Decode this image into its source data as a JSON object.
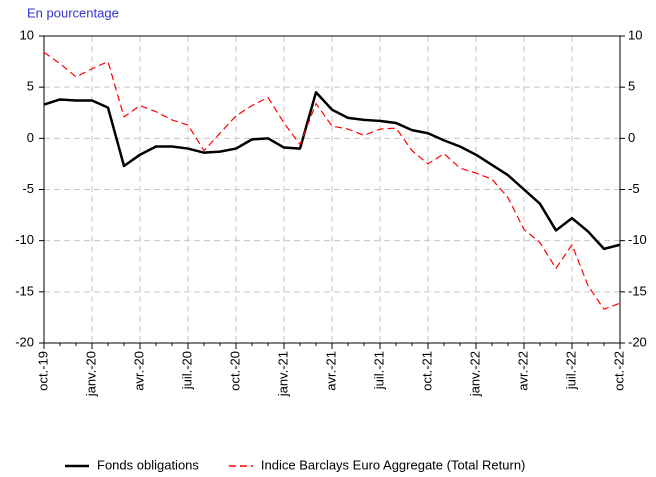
{
  "chart_data": {
    "type": "line",
    "subtitle": "En pourcentage",
    "categories": [
      "oct.-19",
      null,
      null,
      "janv.-20",
      null,
      null,
      "avr.-20",
      null,
      null,
      "juil.-20",
      null,
      null,
      "oct.-20",
      null,
      null,
      "janv.-21",
      null,
      null,
      "avr.-21",
      null,
      null,
      "juil.-21",
      null,
      null,
      "oct.-21",
      null,
      null,
      "janv.-22",
      null,
      null,
      "avr.-22",
      null,
      null,
      "juil.-22",
      null,
      null,
      "oct.-22"
    ],
    "series": [
      {
        "name": "Fonds obligations",
        "color": "#000000",
        "dash": false,
        "values": [
          3.3,
          3.8,
          3.7,
          3.7,
          3.0,
          -2.7,
          -1.6,
          -0.8,
          -0.8,
          -1.0,
          -1.4,
          -1.3,
          -1.0,
          -0.1,
          0.0,
          -0.9,
          -1.0,
          4.5,
          2.8,
          2.0,
          1.8,
          1.7,
          1.5,
          0.8,
          0.5,
          -0.2,
          -0.8,
          -1.6,
          -2.6,
          -3.6,
          -5.0,
          -6.4,
          -9.0,
          -7.8,
          -9.1,
          -10.8,
          -10.4
        ]
      },
      {
        "name": "Indice Barclays Euro Aggregate (Total Return)",
        "color": "#ff0000",
        "dash": true,
        "values": [
          8.4,
          7.3,
          6.0,
          6.8,
          7.5,
          2.1,
          3.2,
          2.6,
          1.8,
          1.3,
          -1.2,
          0.5,
          2.2,
          3.2,
          4.0,
          1.5,
          -0.6,
          3.4,
          1.2,
          0.9,
          0.3,
          0.9,
          1.0,
          -1.2,
          -2.5,
          -1.5,
          -2.9,
          -3.4,
          -4.0,
          -5.8,
          -8.9,
          -10.2,
          -12.7,
          -10.4,
          -14.4,
          -16.7,
          -16.1
        ]
      }
    ],
    "ylim": [
      -20,
      10
    ],
    "yticks": [
      -20,
      -15,
      -10,
      -5,
      0,
      5,
      10
    ],
    "y2lim": [
      -20,
      10
    ],
    "y2ticks": [
      -20,
      -15,
      -10,
      -5,
      0,
      5,
      10
    ],
    "grid": true,
    "legend": "bottom"
  }
}
